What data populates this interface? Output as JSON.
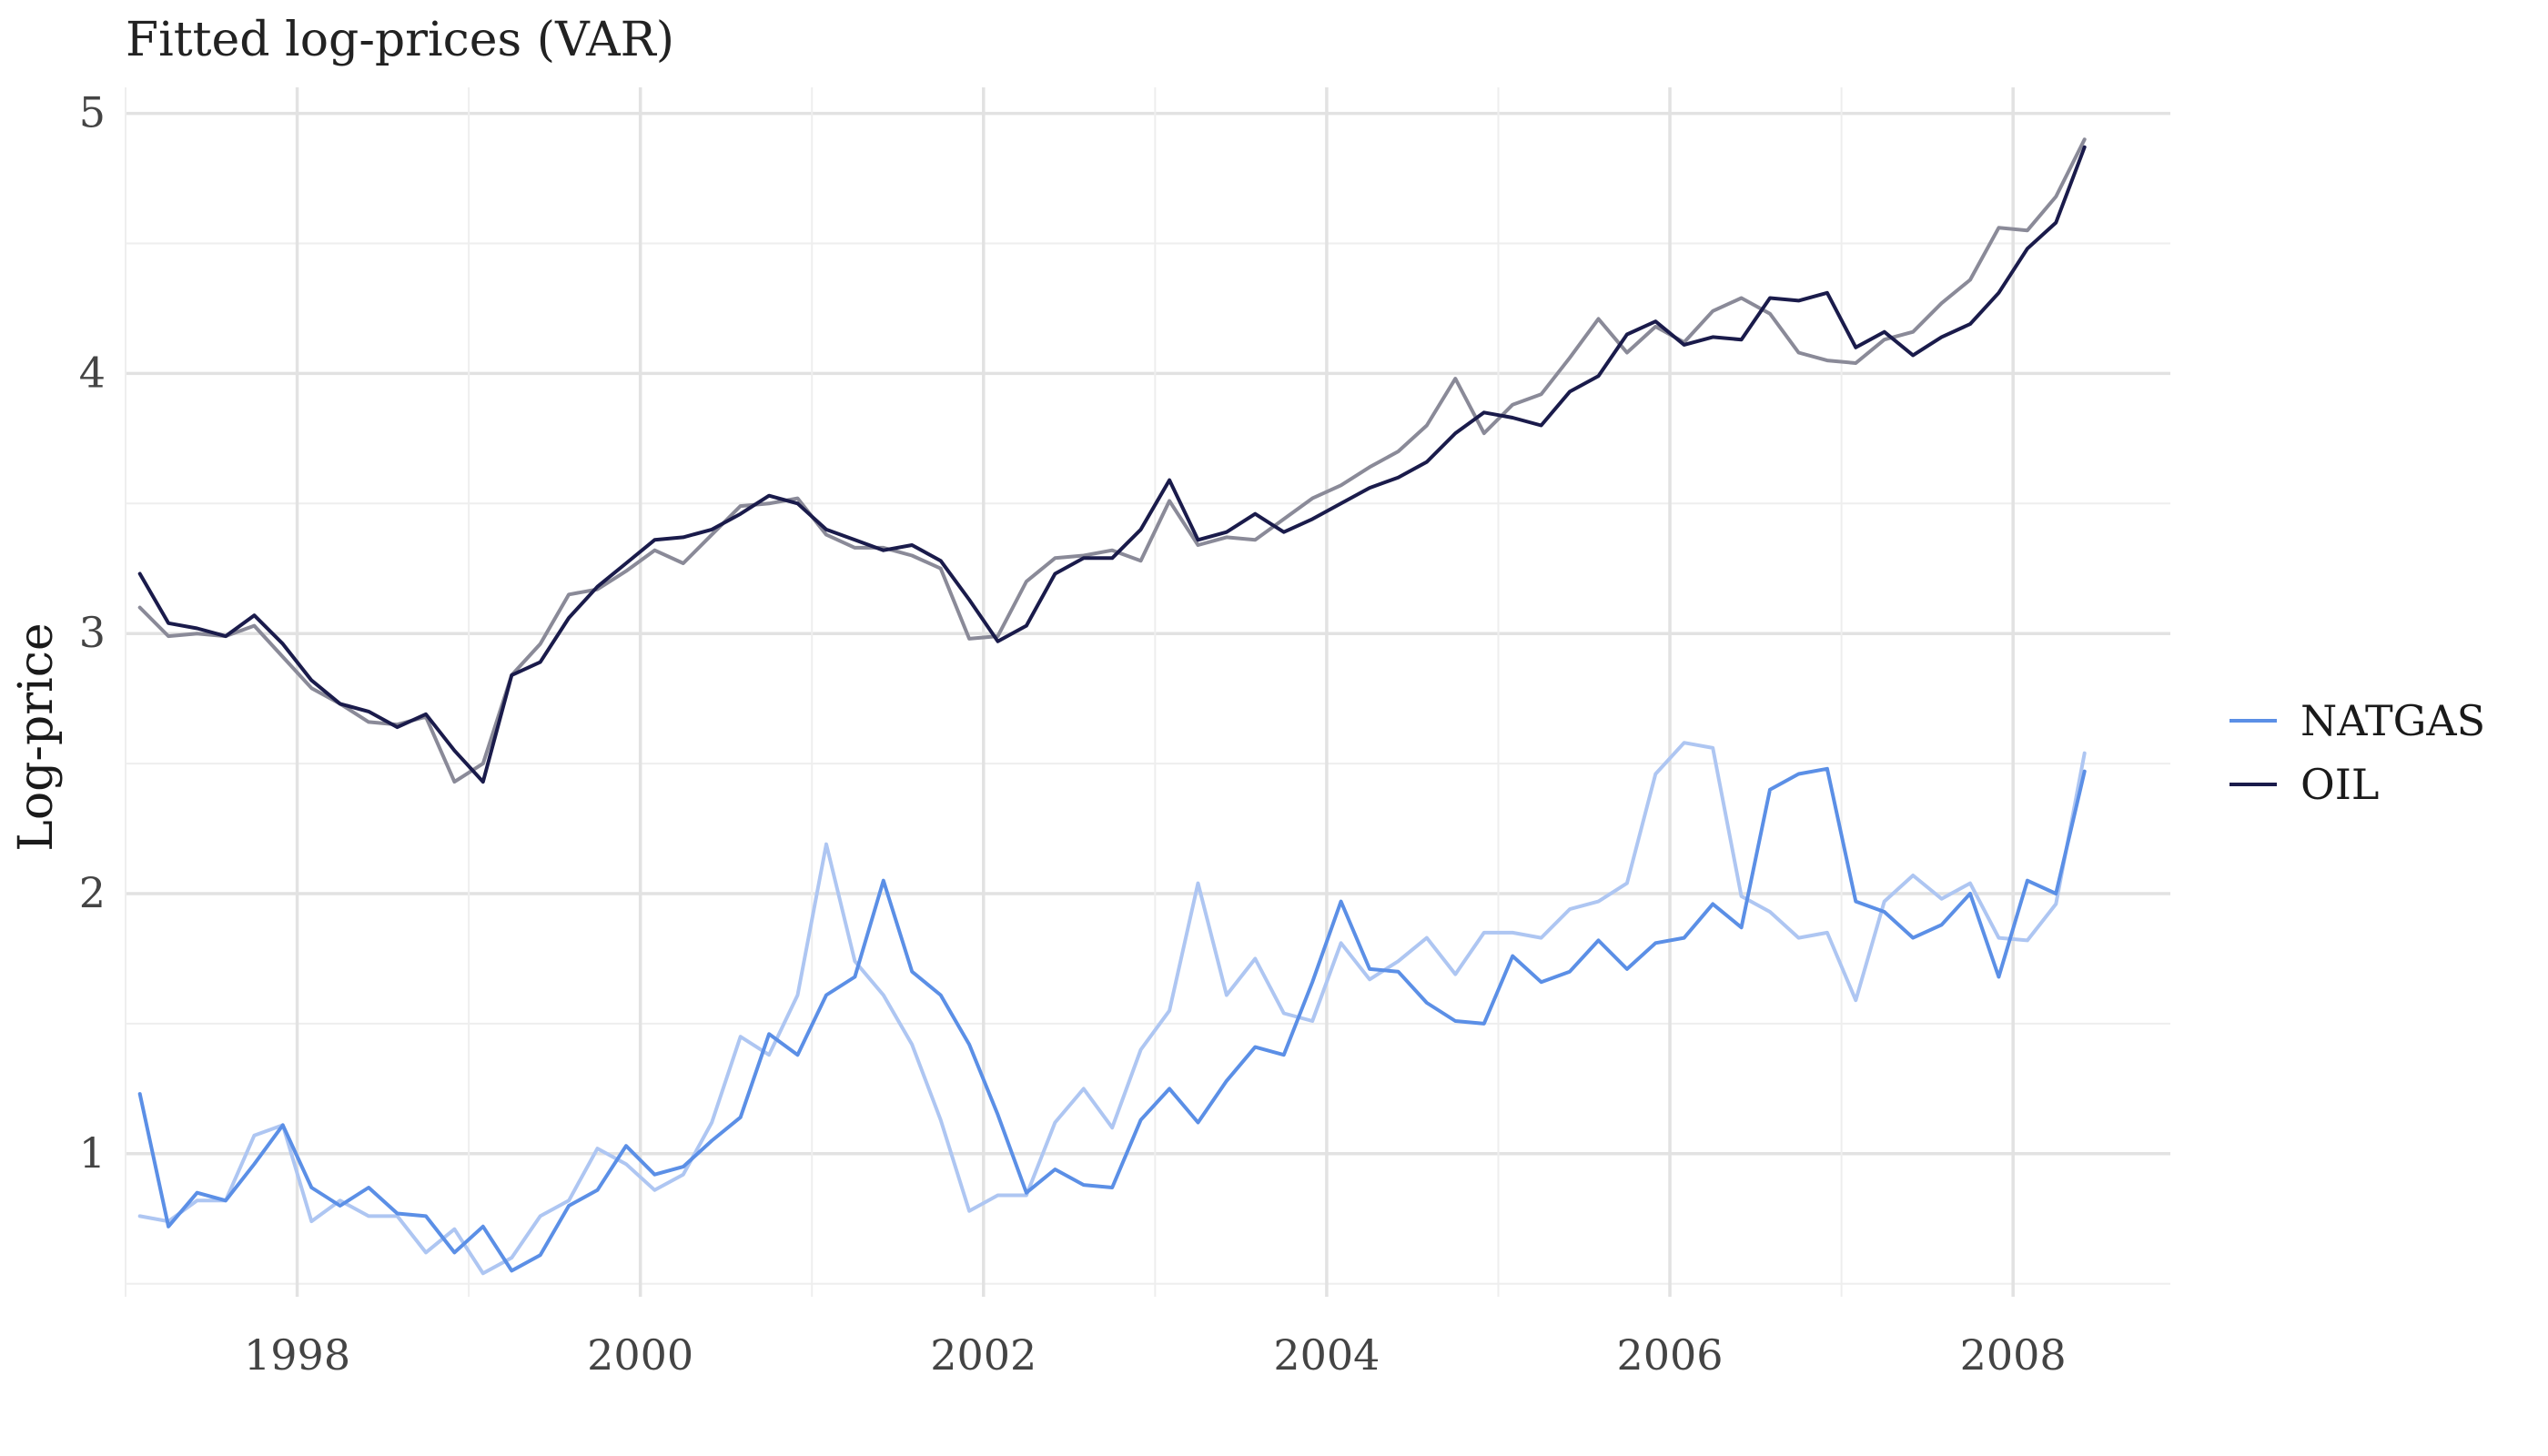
{
  "chart_data": {
    "type": "line",
    "title": "Fitted log-prices (VAR)",
    "xlabel": "",
    "ylabel": "Log-price",
    "x_range": [
      "1997-01",
      "2008-12"
    ],
    "x_ticks": [
      "1998",
      "2000",
      "2002",
      "2004",
      "2006",
      "2008"
    ],
    "ylim": [
      0.45,
      5.1
    ],
    "y_ticks": [
      "1",
      "2",
      "3",
      "4",
      "5"
    ],
    "grid": true,
    "legend": "right",
    "x": [
      "1997-02",
      "1997-04",
      "1997-06",
      "1997-08",
      "1997-10",
      "1997-12",
      "1998-02",
      "1998-04",
      "1998-06",
      "1998-08",
      "1998-10",
      "1998-12",
      "1999-02",
      "1999-04",
      "1999-06",
      "1999-08",
      "1999-10",
      "1999-12",
      "2000-02",
      "2000-04",
      "2000-06",
      "2000-08",
      "2000-10",
      "2000-12",
      "2001-02",
      "2001-04",
      "2001-06",
      "2001-08",
      "2001-10",
      "2001-12",
      "2002-02",
      "2002-04",
      "2002-06",
      "2002-08",
      "2002-10",
      "2002-12",
      "2003-02",
      "2003-04",
      "2003-06",
      "2003-08",
      "2003-10",
      "2003-12",
      "2004-02",
      "2004-04",
      "2004-06",
      "2004-08",
      "2004-10",
      "2004-12",
      "2005-02",
      "2005-04",
      "2005-06",
      "2005-08",
      "2005-10",
      "2005-12",
      "2006-02",
      "2006-04",
      "2006-06",
      "2006-08",
      "2006-10",
      "2006-12",
      "2007-02",
      "2007-04",
      "2007-06",
      "2007-08",
      "2007-10",
      "2007-12",
      "2008-02",
      "2008-04",
      "2008-06"
    ],
    "series": [
      {
        "name": "NATGAS",
        "color": "#5b8fe6",
        "values": [
          1.23,
          0.72,
          0.85,
          0.82,
          0.96,
          1.11,
          0.87,
          0.8,
          0.87,
          0.77,
          0.76,
          0.62,
          0.72,
          0.55,
          0.61,
          0.8,
          0.86,
          1.03,
          0.92,
          0.95,
          1.05,
          1.14,
          1.46,
          1.38,
          1.61,
          1.68,
          2.05,
          1.7,
          1.61,
          1.42,
          1.15,
          0.85,
          0.94,
          0.88,
          0.87,
          1.13,
          1.25,
          1.12,
          1.28,
          1.41,
          1.38,
          1.66,
          1.97,
          1.71,
          1.7,
          1.58,
          1.51,
          1.5,
          1.76,
          1.66,
          1.7,
          1.82,
          1.71,
          1.81,
          1.83,
          1.96,
          1.87,
          2.4,
          2.46,
          2.48,
          1.97,
          1.93,
          1.83,
          1.88,
          2.0,
          1.68,
          2.05,
          2.0,
          2.47
        ]
      },
      {
        "name": "NATGAS",
        "color": "#aec6f2",
        "values": [
          0.76,
          0.74,
          0.82,
          0.82,
          1.07,
          1.11,
          0.74,
          0.82,
          0.76,
          0.76,
          0.62,
          0.71,
          0.54,
          0.6,
          0.76,
          0.82,
          1.02,
          0.96,
          0.86,
          0.92,
          1.12,
          1.45,
          1.38,
          1.61,
          2.19,
          1.74,
          1.61,
          1.42,
          1.13,
          0.78,
          0.84,
          0.84,
          1.12,
          1.25,
          1.1,
          1.4,
          1.55,
          2.04,
          1.61,
          1.75,
          1.54,
          1.51,
          1.81,
          1.67,
          1.74,
          1.83,
          1.69,
          1.85,
          1.85,
          1.83,
          1.94,
          1.97,
          2.04,
          2.46,
          2.58,
          2.56,
          1.99,
          1.93,
          1.83,
          1.85,
          1.59,
          1.97,
          2.07,
          1.98,
          2.04,
          1.83,
          1.82,
          1.96,
          2.54
        ]
      },
      {
        "name": "OIL",
        "color": "#1a1b4b",
        "values": [
          3.23,
          3.04,
          3.02,
          2.99,
          3.07,
          2.96,
          2.82,
          2.73,
          2.7,
          2.64,
          2.69,
          2.55,
          2.43,
          2.84,
          2.89,
          3.06,
          3.18,
          3.27,
          3.36,
          3.37,
          3.4,
          3.46,
          3.53,
          3.5,
          3.4,
          3.36,
          3.32,
          3.34,
          3.28,
          3.13,
          2.97,
          3.03,
          3.23,
          3.29,
          3.29,
          3.4,
          3.59,
          3.36,
          3.39,
          3.46,
          3.39,
          3.44,
          3.5,
          3.56,
          3.6,
          3.66,
          3.77,
          3.85,
          3.83,
          3.8,
          3.93,
          3.99,
          4.15,
          4.2,
          4.11,
          4.14,
          4.13,
          4.29,
          4.28,
          4.31,
          4.1,
          4.16,
          4.07,
          4.14,
          4.19,
          4.31,
          4.48,
          4.58,
          4.87
        ]
      },
      {
        "name": "OIL",
        "color": "#8a8a98",
        "values": [
          3.1,
          2.99,
          3.0,
          2.99,
          3.03,
          2.91,
          2.79,
          2.73,
          2.66,
          2.65,
          2.68,
          2.43,
          2.5,
          2.84,
          2.96,
          3.15,
          3.17,
          3.24,
          3.32,
          3.27,
          3.38,
          3.49,
          3.5,
          3.52,
          3.38,
          3.33,
          3.33,
          3.3,
          3.25,
          2.98,
          2.99,
          3.2,
          3.29,
          3.3,
          3.32,
          3.28,
          3.51,
          3.34,
          3.37,
          3.36,
          3.44,
          3.52,
          3.57,
          3.64,
          3.7,
          3.8,
          3.98,
          3.77,
          3.88,
          3.92,
          4.06,
          4.21,
          4.08,
          4.18,
          4.12,
          4.24,
          4.29,
          4.23,
          4.08,
          4.05,
          4.04,
          4.13,
          4.16,
          4.27,
          4.36,
          4.56,
          4.55,
          4.68,
          4.9
        ]
      }
    ]
  }
}
